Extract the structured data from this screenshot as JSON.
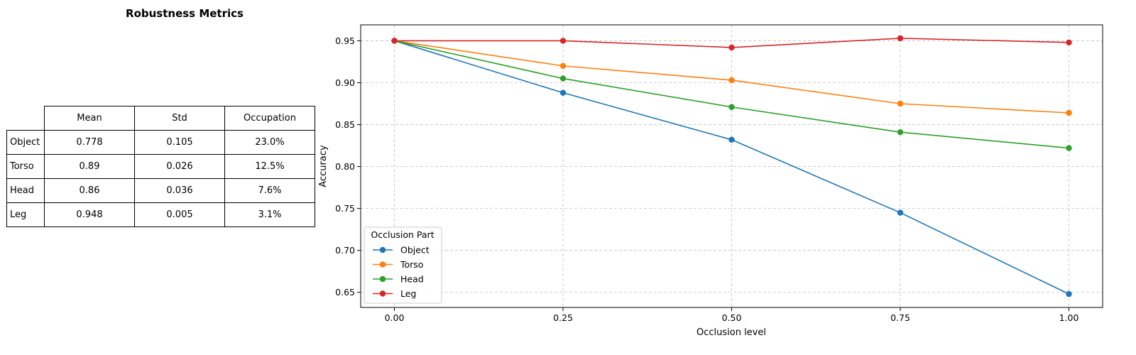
{
  "table": {
    "title": "Robustness Metrics",
    "columns": [
      "Mean",
      "Std",
      "Occupation"
    ],
    "rows": [
      {
        "label": "Object",
        "values": [
          "0.778",
          "0.105",
          "23.0%"
        ]
      },
      {
        "label": "Torso",
        "values": [
          "0.89",
          "0.026",
          "12.5%"
        ]
      },
      {
        "label": "Head",
        "values": [
          "0.86",
          "0.036",
          "7.6%"
        ]
      },
      {
        "label": "Leg",
        "values": [
          "0.948",
          "0.005",
          "3.1%"
        ]
      }
    ]
  },
  "chart_data": {
    "type": "line",
    "title": "",
    "xlabel": "Occlusion level",
    "ylabel": "Accuracy",
    "x": [
      0.0,
      0.25,
      0.5,
      0.75,
      1.0
    ],
    "x_tick_labels": [
      "0.00",
      "0.25",
      "0.50",
      "0.75",
      "1.00"
    ],
    "y_tick_values": [
      0.65,
      0.7,
      0.75,
      0.8,
      0.85,
      0.9,
      0.95
    ],
    "y_tick_labels": [
      "0.65",
      "0.70",
      "0.75",
      "0.80",
      "0.85",
      "0.90",
      "0.95"
    ],
    "xlim": [
      -0.05,
      1.05
    ],
    "ylim": [
      0.632,
      0.969
    ],
    "grid": true,
    "legend": {
      "title": "Occlusion Part",
      "placement": "lower-left"
    },
    "series": [
      {
        "name": "Object",
        "color": "#1f77b4",
        "values": [
          0.95,
          0.888,
          0.832,
          0.745,
          0.648
        ]
      },
      {
        "name": "Torso",
        "color": "#ff7f0e",
        "values": [
          0.95,
          0.92,
          0.903,
          0.875,
          0.864
        ]
      },
      {
        "name": "Head",
        "color": "#2ca02c",
        "values": [
          0.95,
          0.905,
          0.871,
          0.841,
          0.822
        ]
      },
      {
        "name": "Leg",
        "color": "#d62728",
        "values": [
          0.95,
          0.95,
          0.942,
          0.953,
          0.948
        ]
      }
    ]
  }
}
